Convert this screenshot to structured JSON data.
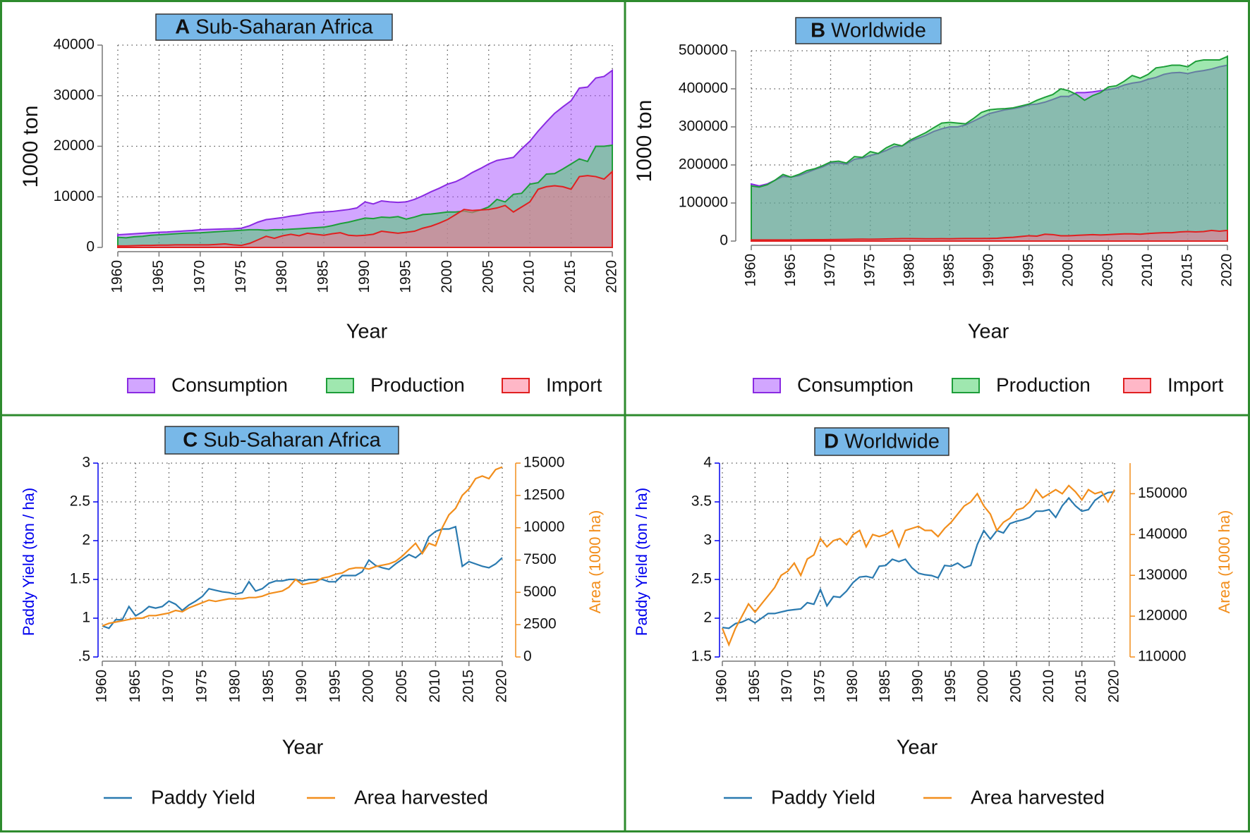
{
  "chart_data": [
    {
      "type": "area",
      "panel": "A",
      "title": "Sub-Saharan Africa",
      "ylabel": "1000 ton",
      "xlabel": "Year",
      "grid": true,
      "x": [
        1960,
        1961,
        1962,
        1963,
        1964,
        1965,
        1966,
        1967,
        1968,
        1969,
        1970,
        1971,
        1972,
        1973,
        1974,
        1975,
        1976,
        1977,
        1978,
        1979,
        1980,
        1981,
        1982,
        1983,
        1984,
        1985,
        1986,
        1987,
        1988,
        1989,
        1990,
        1991,
        1992,
        1993,
        1994,
        1995,
        1996,
        1997,
        1998,
        1999,
        2000,
        2001,
        2002,
        2003,
        2004,
        2005,
        2006,
        2007,
        2008,
        2009,
        2010,
        2011,
        2012,
        2013,
        2014,
        2015,
        2016,
        2017,
        2018,
        2019,
        2020
      ],
      "xlim": [
        1960,
        2020
      ],
      "xticks": [
        1960,
        1965,
        1970,
        1975,
        1980,
        1985,
        1990,
        1995,
        2000,
        2005,
        2010,
        2015,
        2020
      ],
      "ylim": [
        0,
        40000
      ],
      "yticks": [
        0,
        10000,
        20000,
        30000,
        40000
      ],
      "series": [
        {
          "name": "Consumption",
          "color": "#8a2be2",
          "fill": "#a64dff",
          "values": [
            2500,
            2600,
            2700,
            2800,
            2900,
            3000,
            3050,
            3150,
            3250,
            3350,
            3500,
            3550,
            3600,
            3650,
            3700,
            3800,
            4300,
            5000,
            5500,
            5700,
            5900,
            6200,
            6400,
            6700,
            6900,
            7000,
            7100,
            7300,
            7500,
            7800,
            9000,
            8600,
            9200,
            9000,
            8900,
            9000,
            9500,
            10200,
            11000,
            11700,
            12500,
            13000,
            13800,
            14800,
            15600,
            16500,
            17200,
            17500,
            17800,
            19500,
            21000,
            23000,
            24800,
            26500,
            27800,
            29000,
            31500,
            31700,
            33500,
            33800,
            35000
          ]
        },
        {
          "name": "Production",
          "color": "#1e9e3a",
          "fill": "#40d060",
          "values": [
            2000,
            1900,
            2100,
            2200,
            2400,
            2500,
            2600,
            2700,
            2800,
            2850,
            2900,
            3000,
            3100,
            3200,
            3300,
            3400,
            3500,
            3500,
            3400,
            3500,
            3500,
            3600,
            3700,
            3800,
            3900,
            4000,
            4300,
            4700,
            5000,
            5400,
            5800,
            5700,
            6000,
            5900,
            6100,
            5600,
            6000,
            6500,
            6600,
            6800,
            7000,
            7000,
            7200,
            6900,
            7400,
            8000,
            9500,
            9000,
            10500,
            10700,
            12500,
            12800,
            14500,
            14600,
            15500,
            16500,
            17500,
            17000,
            20000,
            20000,
            20200
          ]
        },
        {
          "name": "Import",
          "color": "#e02020",
          "fill": "#ff7090",
          "values": [
            300,
            300,
            350,
            400,
            400,
            450,
            450,
            500,
            500,
            500,
            500,
            500,
            600,
            700,
            500,
            400,
            800,
            1500,
            2200,
            1800,
            2300,
            2600,
            2300,
            2800,
            2600,
            2400,
            2700,
            2900,
            2400,
            2300,
            2400,
            2600,
            3200,
            3000,
            2800,
            3000,
            3200,
            3800,
            4200,
            4800,
            5500,
            6500,
            7500,
            7300,
            7400,
            7500,
            7800,
            8300,
            7000,
            8000,
            9000,
            11500,
            12000,
            12200,
            12000,
            11500,
            14000,
            14200,
            14000,
            13500,
            15000
          ]
        }
      ]
    },
    {
      "type": "area",
      "panel": "B",
      "title": "Worldwide",
      "ylabel": "1000 ton",
      "xlabel": "Year",
      "grid": true,
      "x": [
        1960,
        1961,
        1962,
        1963,
        1964,
        1965,
        1966,
        1967,
        1968,
        1969,
        1970,
        1971,
        1972,
        1973,
        1974,
        1975,
        1976,
        1977,
        1978,
        1979,
        1980,
        1981,
        1982,
        1983,
        1984,
        1985,
        1986,
        1987,
        1988,
        1989,
        1990,
        1991,
        1992,
        1993,
        1994,
        1995,
        1996,
        1997,
        1998,
        1999,
        2000,
        2001,
        2002,
        2003,
        2004,
        2005,
        2006,
        2007,
        2008,
        2009,
        2010,
        2011,
        2012,
        2013,
        2014,
        2015,
        2016,
        2017,
        2018,
        2019,
        2020
      ],
      "xlim": [
        1960,
        2020
      ],
      "xticks": [
        1960,
        1965,
        1970,
        1975,
        1980,
        1985,
        1990,
        1995,
        2000,
        2005,
        2010,
        2015,
        2020
      ],
      "ylim": [
        0,
        500000
      ],
      "yticks": [
        0,
        100000,
        200000,
        300000,
        400000,
        500000
      ],
      "series": [
        {
          "name": "Consumption",
          "color": "#8a2be2",
          "fill": "#a64dff",
          "values": [
            150000,
            145000,
            150000,
            160000,
            170000,
            168000,
            172000,
            180000,
            188000,
            195000,
            205000,
            205000,
            202000,
            215000,
            218000,
            225000,
            230000,
            238000,
            248000,
            250000,
            262000,
            270000,
            278000,
            288000,
            295000,
            300000,
            300000,
            305000,
            315000,
            325000,
            335000,
            340000,
            345000,
            348000,
            352000,
            358000,
            360000,
            365000,
            372000,
            380000,
            380000,
            390000,
            390000,
            392000,
            395000,
            398000,
            402000,
            410000,
            415000,
            418000,
            425000,
            430000,
            438000,
            442000,
            443000,
            440000,
            445000,
            448000,
            452000,
            458000,
            462000
          ]
        },
        {
          "name": "Production",
          "color": "#1e9e3a",
          "fill": "#40d060",
          "values": [
            145000,
            142000,
            148000,
            160000,
            175000,
            168000,
            175000,
            185000,
            190000,
            198000,
            208000,
            210000,
            205000,
            222000,
            220000,
            235000,
            230000,
            245000,
            255000,
            250000,
            265000,
            275000,
            285000,
            298000,
            310000,
            312000,
            310000,
            308000,
            322000,
            338000,
            345000,
            347000,
            348000,
            350000,
            355000,
            360000,
            370000,
            378000,
            385000,
            400000,
            395000,
            385000,
            370000,
            382000,
            390000,
            405000,
            408000,
            420000,
            435000,
            428000,
            438000,
            455000,
            458000,
            462000,
            462000,
            458000,
            472000,
            476000,
            476000,
            476000,
            485000
          ]
        },
        {
          "name": "Import",
          "color": "#e02020",
          "fill": "#ff7090",
          "values": [
            3000,
            3000,
            3000,
            3000,
            3000,
            3000,
            3200,
            3400,
            3600,
            3800,
            4000,
            4200,
            4500,
            4800,
            5000,
            4800,
            5000,
            5500,
            6000,
            6500,
            6500,
            6200,
            6000,
            6000,
            6200,
            6000,
            6500,
            6800,
            6800,
            6600,
            7000,
            7500,
            9000,
            10000,
            12000,
            14000,
            13000,
            18000,
            17000,
            14000,
            14000,
            15000,
            16000,
            17000,
            16000,
            17000,
            18000,
            19000,
            19000,
            18000,
            20000,
            21000,
            22000,
            22000,
            24000,
            25000,
            24000,
            25000,
            28000,
            26000,
            28000
          ]
        }
      ]
    },
    {
      "type": "line",
      "panel": "C",
      "title": "Sub-Saharan Africa",
      "ylabel": "Paddy Yield (ton / ha)",
      "y2label": "Area (1000 ha)",
      "xlabel": "Year",
      "grid": true,
      "x": [
        1960,
        1961,
        1962,
        1963,
        1964,
        1965,
        1966,
        1967,
        1968,
        1969,
        1970,
        1971,
        1972,
        1973,
        1974,
        1975,
        1976,
        1977,
        1978,
        1979,
        1980,
        1981,
        1982,
        1983,
        1984,
        1985,
        1986,
        1987,
        1988,
        1989,
        1990,
        1991,
        1992,
        1993,
        1994,
        1995,
        1996,
        1997,
        1998,
        1999,
        2000,
        2001,
        2002,
        2003,
        2004,
        2005,
        2006,
        2007,
        2008,
        2009,
        2010,
        2011,
        2012,
        2013,
        2014,
        2015,
        2016,
        2017,
        2018,
        2019,
        2020
      ],
      "xlim": [
        1960,
        2020
      ],
      "xticks": [
        1960,
        1965,
        1970,
        1975,
        1980,
        1985,
        1990,
        1995,
        2000,
        2005,
        2010,
        2015,
        2020
      ],
      "ylim": [
        0.5,
        3
      ],
      "yticks": [
        {
          "value": 0.5,
          "label": ".5"
        },
        1,
        1.5,
        2,
        2.5,
        3
      ],
      "y2lim": [
        0,
        15000
      ],
      "y2ticks": [
        0,
        2500,
        5000,
        7500,
        10000,
        12500,
        15000
      ],
      "ycolor": "#0000ee",
      "y2color": "#f28e1c",
      "series": [
        {
          "name": "Paddy Yield",
          "color": "#2a7ab0",
          "values": [
            0.9,
            0.87,
            0.98,
            0.98,
            1.15,
            1.03,
            1.08,
            1.15,
            1.13,
            1.15,
            1.22,
            1.18,
            1.1,
            1.17,
            1.22,
            1.28,
            1.38,
            1.36,
            1.34,
            1.33,
            1.31,
            1.33,
            1.47,
            1.35,
            1.38,
            1.45,
            1.48,
            1.48,
            1.5,
            1.5,
            1.48,
            1.5,
            1.5,
            1.5,
            1.47,
            1.47,
            1.55,
            1.55,
            1.55,
            1.6,
            1.75,
            1.68,
            1.65,
            1.63,
            1.7,
            1.76,
            1.82,
            1.78,
            1.85,
            2.05,
            2.12,
            2.15,
            2.15,
            2.18,
            1.67,
            1.73,
            1.7,
            1.67,
            1.65,
            1.7,
            1.78
          ]
        },
        {
          "name": "Area harvested",
          "color": "#f28e1c",
          "axis": "y2",
          "values": [
            2400,
            2600,
            2700,
            2800,
            2900,
            3000,
            3000,
            3200,
            3200,
            3300,
            3400,
            3600,
            3500,
            3800,
            4000,
            4200,
            4400,
            4300,
            4400,
            4500,
            4500,
            4500,
            4600,
            4600,
            4700,
            4900,
            5000,
            5100,
            5400,
            6000,
            5600,
            5700,
            5800,
            6100,
            6200,
            6400,
            6500,
            6800,
            6900,
            6900,
            6800,
            7000,
            7100,
            7200,
            7400,
            7800,
            8300,
            8800,
            8000,
            8800,
            8600,
            10000,
            11000,
            11500,
            12500,
            13000,
            13800,
            14000,
            13800,
            14500,
            14700
          ]
        }
      ]
    },
    {
      "type": "line",
      "panel": "D",
      "title": "Worldwide",
      "ylabel": "Paddy Yield (ton / ha)",
      "y2label": "Area (1000 ha)",
      "xlabel": "Year",
      "grid": true,
      "x": [
        1960,
        1961,
        1962,
        1963,
        1964,
        1965,
        1966,
        1967,
        1968,
        1969,
        1970,
        1971,
        1972,
        1973,
        1974,
        1975,
        1976,
        1977,
        1978,
        1979,
        1980,
        1981,
        1982,
        1983,
        1984,
        1985,
        1986,
        1987,
        1988,
        1989,
        1990,
        1991,
        1992,
        1993,
        1994,
        1995,
        1996,
        1997,
        1998,
        1999,
        2000,
        2001,
        2002,
        2003,
        2004,
        2005,
        2006,
        2007,
        2008,
        2009,
        2010,
        2011,
        2012,
        2013,
        2014,
        2015,
        2016,
        2017,
        2018,
        2019,
        2020
      ],
      "xlim": [
        1960,
        2020
      ],
      "xticks": [
        1960,
        1965,
        1970,
        1975,
        1980,
        1985,
        1990,
        1995,
        2000,
        2005,
        2010,
        2015,
        2020
      ],
      "ylim": [
        1.5,
        4
      ],
      "yticks": [
        1.5,
        2,
        2.5,
        3,
        3.5,
        4
      ],
      "y2lim": [
        110000,
        157500
      ],
      "y2ticks": [
        110000,
        120000,
        130000,
        140000,
        150000
      ],
      "ycolor": "#0000ee",
      "y2color": "#f28e1c",
      "series": [
        {
          "name": "Paddy Yield",
          "color": "#2a7ab0",
          "values": [
            1.88,
            1.87,
            1.93,
            1.95,
            1.99,
            1.94,
            2.0,
            2.06,
            2.06,
            2.08,
            2.1,
            2.11,
            2.12,
            2.2,
            2.18,
            2.37,
            2.16,
            2.28,
            2.27,
            2.35,
            2.46,
            2.53,
            2.54,
            2.52,
            2.67,
            2.68,
            2.76,
            2.73,
            2.76,
            2.65,
            2.58,
            2.56,
            2.55,
            2.52,
            2.68,
            2.67,
            2.71,
            2.65,
            2.68,
            2.95,
            3.13,
            3.02,
            3.13,
            3.1,
            3.22,
            3.25,
            3.27,
            3.3,
            3.38,
            3.38,
            3.4,
            3.3,
            3.45,
            3.55,
            3.45,
            3.38,
            3.4,
            3.52,
            3.58,
            3.62,
            3.63
          ]
        },
        {
          "name": "Area harvested",
          "color": "#f28e1c",
          "axis": "y2",
          "values": [
            117000,
            113000,
            117000,
            120000,
            123000,
            121000,
            123000,
            125000,
            127000,
            130000,
            131000,
            133000,
            130000,
            134000,
            135000,
            139000,
            137000,
            138500,
            139000,
            137500,
            140000,
            141000,
            137000,
            140000,
            139500,
            140000,
            141000,
            137000,
            141000,
            141500,
            142000,
            141000,
            141000,
            139500,
            141500,
            143000,
            145000,
            147000,
            148000,
            150000,
            147000,
            145000,
            141000,
            143000,
            144000,
            146000,
            146500,
            148000,
            151000,
            149000,
            150000,
            151000,
            150000,
            152000,
            150500,
            148500,
            151000,
            150000,
            150500,
            148000,
            151000
          ]
        }
      ]
    }
  ]
}
